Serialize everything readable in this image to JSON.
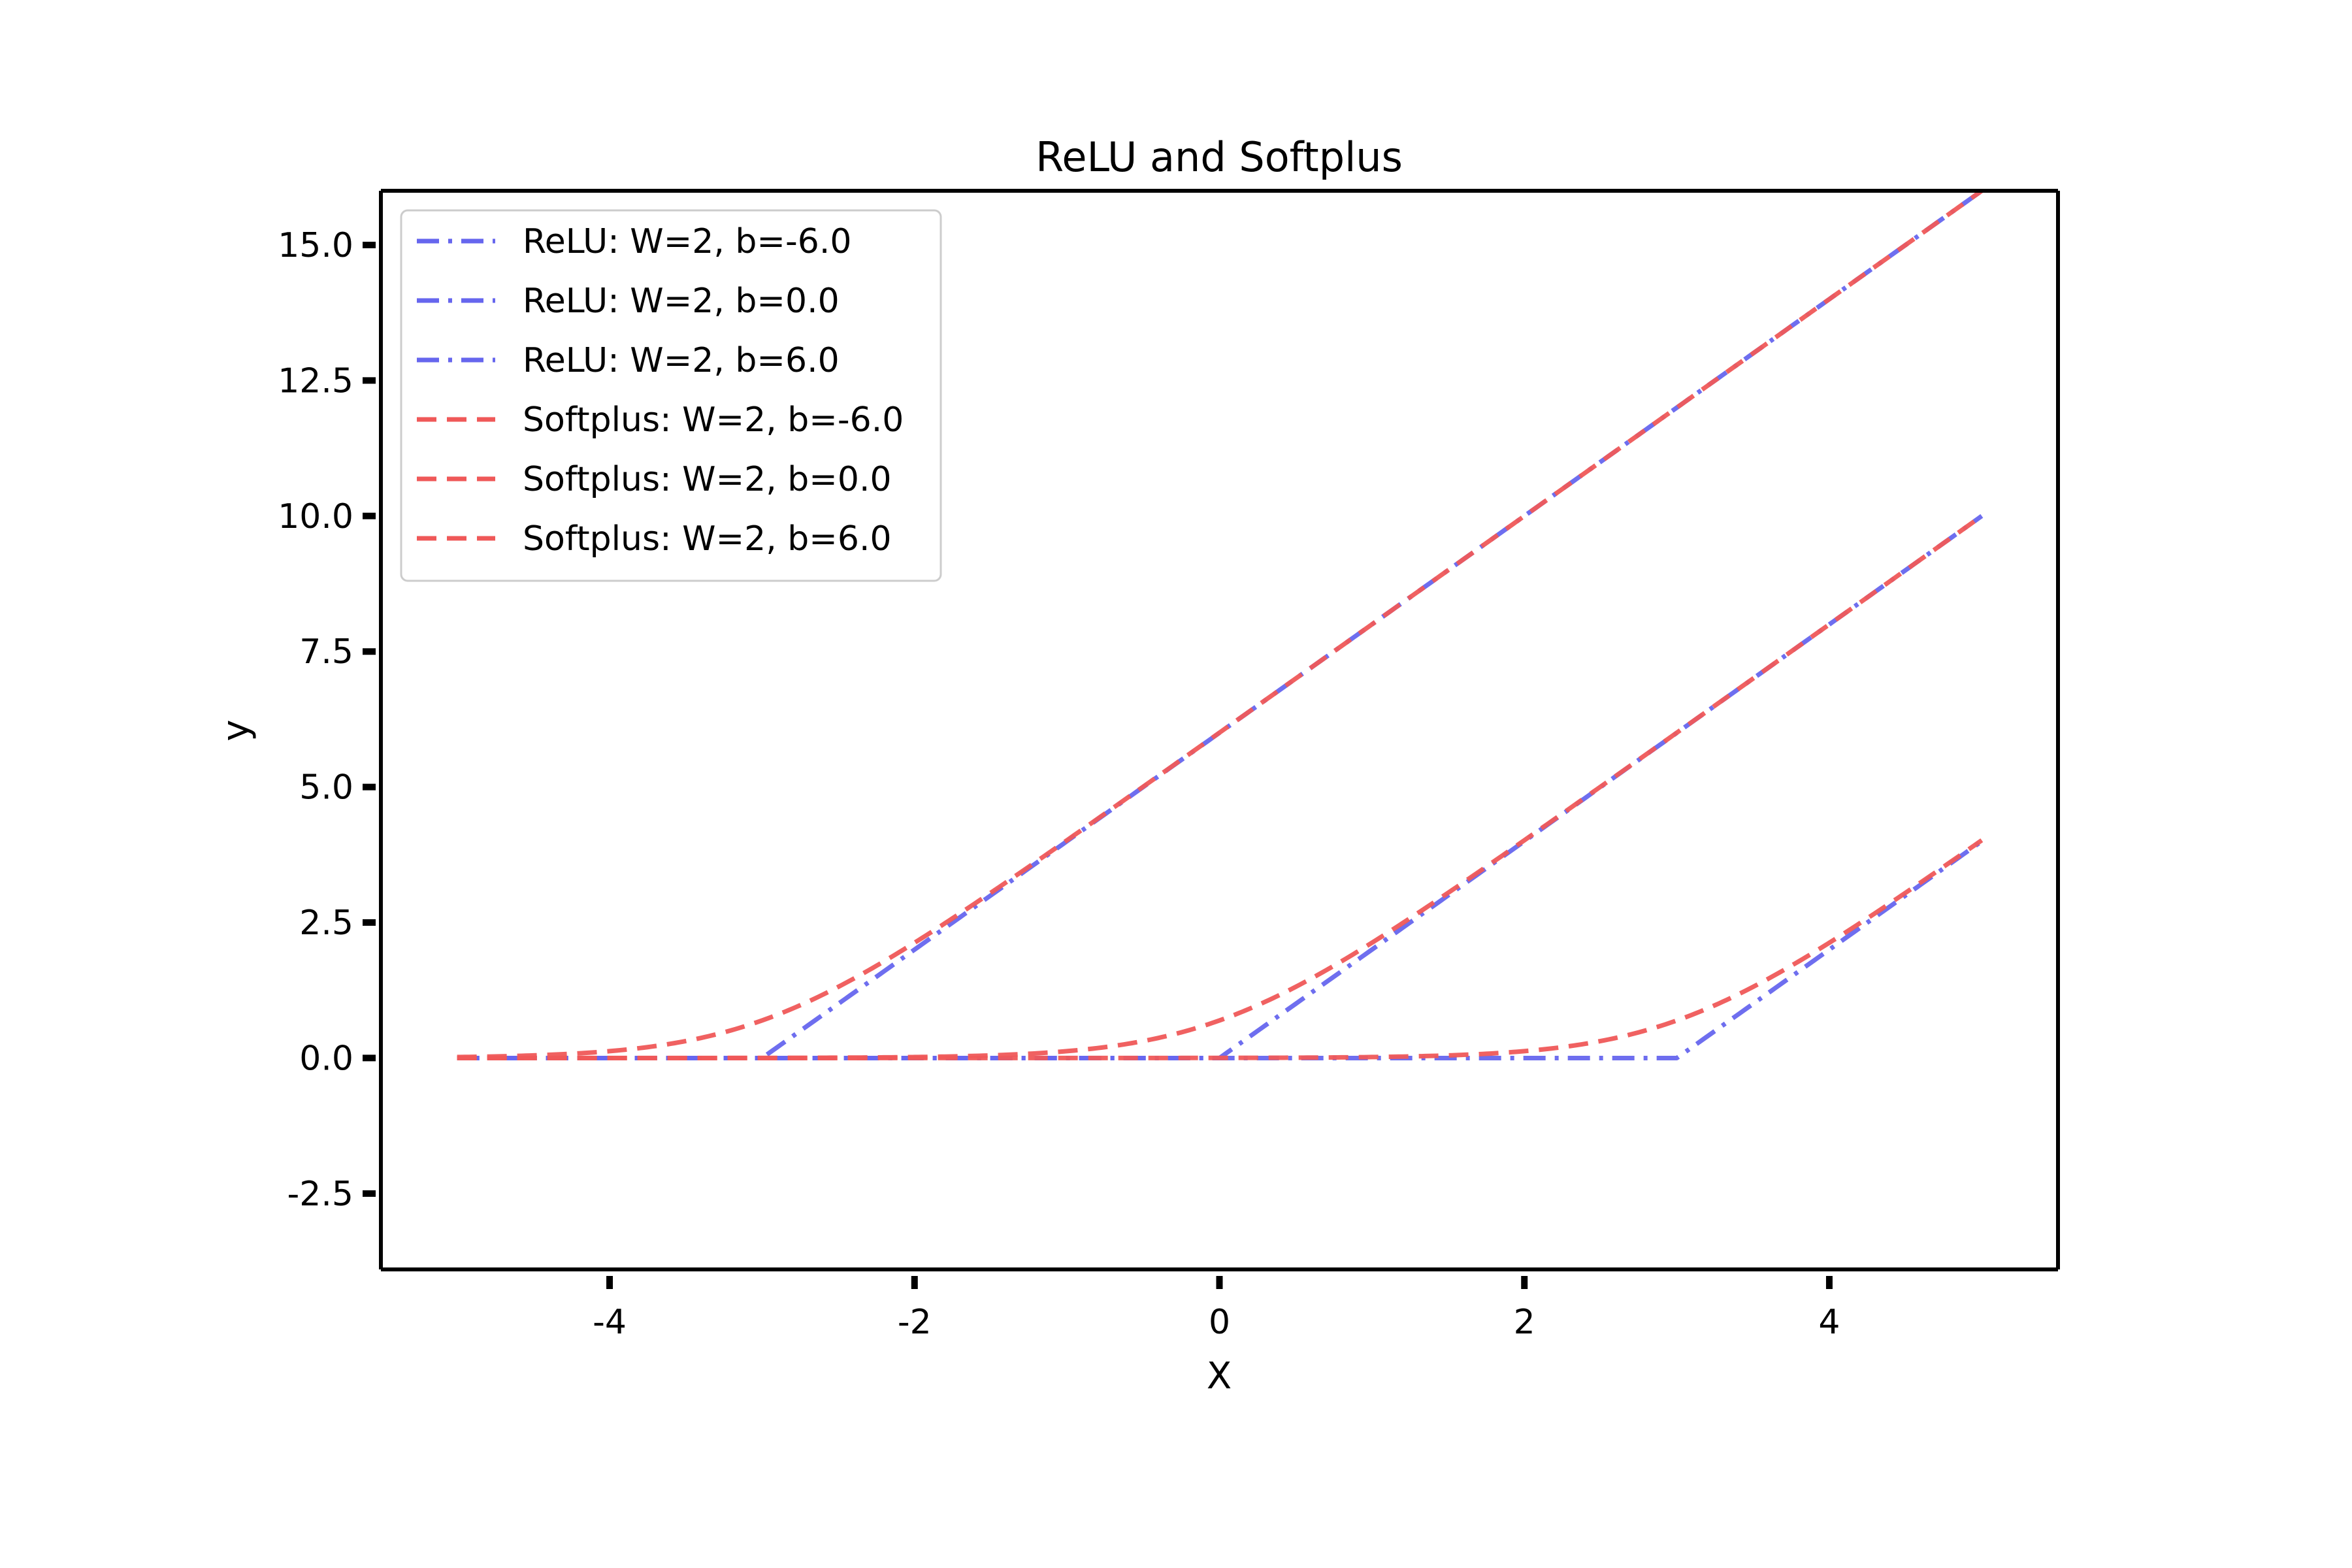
{
  "chart_data": {
    "type": "line",
    "title": "ReLU and Softplus",
    "xlabel": "X",
    "ylabel": "y",
    "xlim": [
      -5.5,
      5.5
    ],
    "ylim": [
      -3.9,
      16.0
    ],
    "x_ticks": [
      -4,
      -2,
      0,
      2,
      4
    ],
    "x_tick_labels": [
      "-4",
      "-2",
      "0",
      "2",
      "4"
    ],
    "y_ticks": [
      -2.5,
      0.0,
      2.5,
      5.0,
      7.5,
      10.0,
      12.5,
      15.0
    ],
    "y_tick_labels": [
      "-2.5",
      "0.0",
      "2.5",
      "5.0",
      "7.5",
      "10.0",
      "12.5",
      "15.0"
    ],
    "grid": false,
    "legend_position": "top-left",
    "x_range": [
      -5,
      5
    ],
    "series": [
      {
        "name": "ReLU: W=2, b=-6.0",
        "function": "relu",
        "W": 2,
        "b": -6.0,
        "color": "#6666ee",
        "dash": "dashdot"
      },
      {
        "name": "ReLU: W=2, b=0.0",
        "function": "relu",
        "W": 2,
        "b": 0.0,
        "color": "#6666ee",
        "dash": "dashdot"
      },
      {
        "name": "ReLU: W=2, b=6.0",
        "function": "relu",
        "W": 2,
        "b": 6.0,
        "color": "#6666ee",
        "dash": "dashdot"
      },
      {
        "name": "Softplus: W=2, b=-6.0",
        "function": "softplus",
        "W": 2,
        "b": -6.0,
        "color": "#ef5858",
        "dash": "dashed"
      },
      {
        "name": "Softplus: W=2, b=0.0",
        "function": "softplus",
        "W": 2,
        "b": 0.0,
        "color": "#ef5858",
        "dash": "dashed"
      },
      {
        "name": "Softplus: W=2, b=6.0",
        "function": "softplus",
        "W": 2,
        "b": 6.0,
        "color": "#ef5858",
        "dash": "dashed"
      }
    ]
  }
}
